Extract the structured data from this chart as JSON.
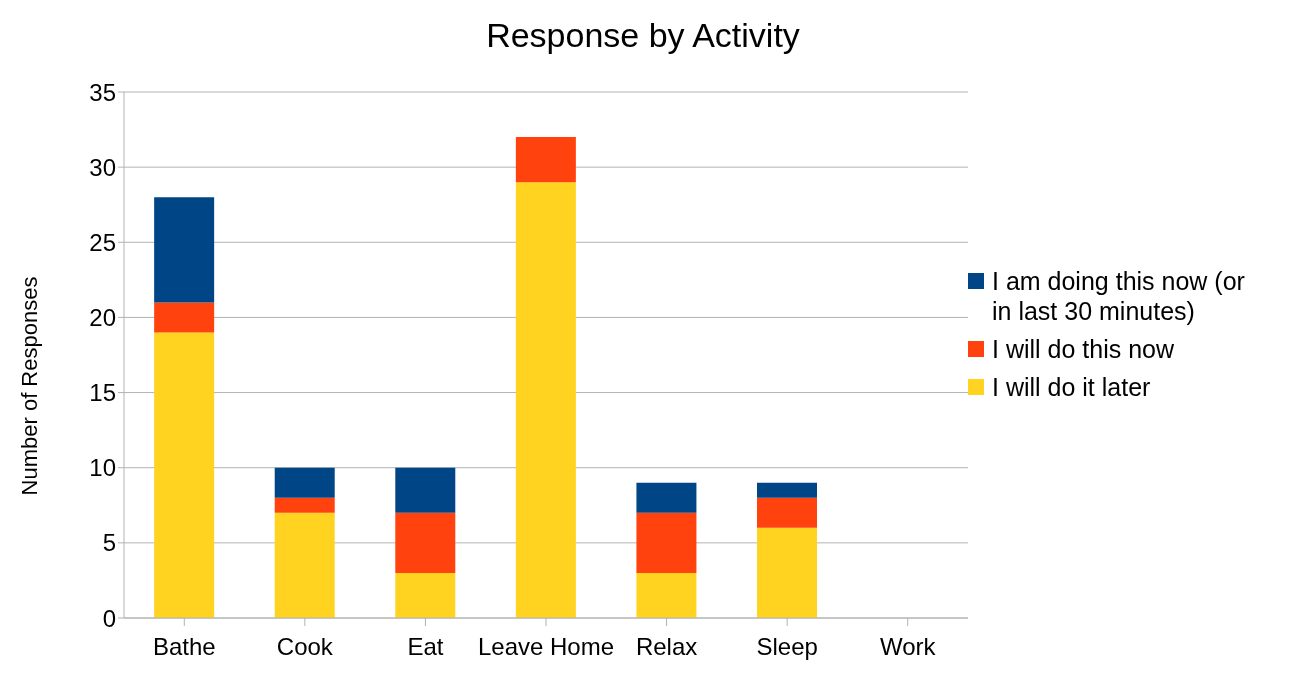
{
  "chart_data": {
    "type": "bar",
    "title": "Response by Activity",
    "ylabel": "Number of Responses",
    "categories": [
      "Bathe",
      "Cook",
      "Eat",
      "Leave Home",
      "Relax",
      "Sleep",
      "Work"
    ],
    "series": [
      {
        "name": "I will do it later",
        "color": "#ffd320",
        "values": [
          19,
          7,
          3,
          29,
          3,
          6,
          0
        ]
      },
      {
        "name": "I will do this now",
        "color": "#ff420e",
        "values": [
          2,
          1,
          4,
          3,
          4,
          2,
          0
        ]
      },
      {
        "name": "I am doing this now (or in last 30 minutes)",
        "color": "#004586",
        "values": [
          7,
          2,
          3,
          0,
          2,
          1,
          0
        ]
      }
    ],
    "stacked": true,
    "ylim": [
      0,
      35
    ],
    "yticks": [
      0,
      5,
      10,
      15,
      20,
      25,
      30,
      35
    ],
    "grid": "y",
    "legend": "right"
  }
}
